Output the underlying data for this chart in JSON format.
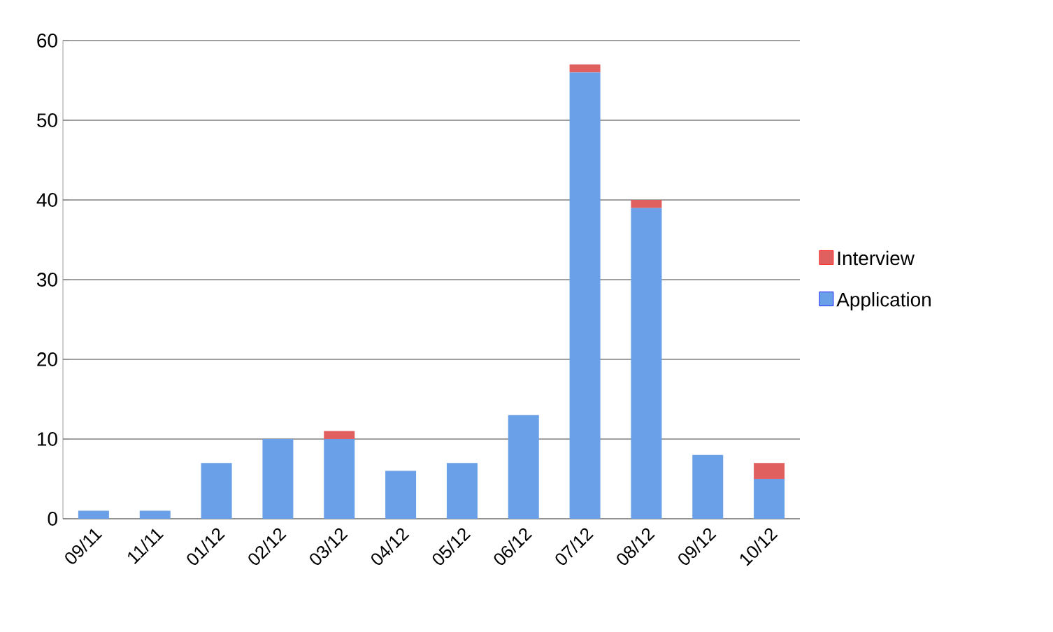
{
  "chart_data": {
    "type": "bar",
    "stacked": true,
    "categories": [
      "09/11",
      "11/11",
      "01/12",
      "02/12",
      "03/12",
      "04/12",
      "05/12",
      "06/12",
      "07/12",
      "08/12",
      "09/12",
      "10/12"
    ],
    "series": [
      {
        "name": "Application",
        "color": "#6aa0e8",
        "values": [
          1,
          1,
          7,
          10,
          10,
          6,
          7,
          13,
          56,
          39,
          8,
          5
        ]
      },
      {
        "name": "Interview",
        "color": "#e06060",
        "values": [
          0,
          0,
          0,
          0,
          1,
          0,
          0,
          0,
          1,
          1,
          0,
          2
        ]
      }
    ],
    "ylim": [
      0,
      60
    ],
    "yticks": [
      0,
      10,
      20,
      30,
      40,
      50,
      60
    ],
    "grid": "y",
    "legend": "right"
  }
}
